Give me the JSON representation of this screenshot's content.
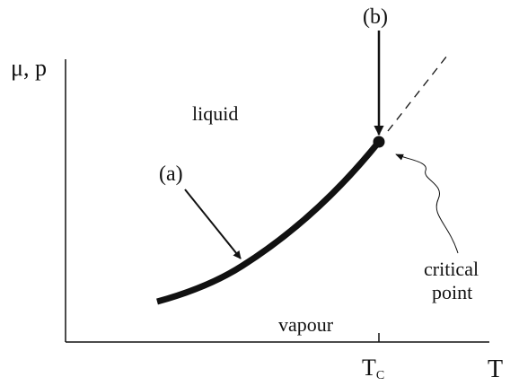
{
  "axes": {
    "y_label": "μ, p",
    "x_label": "T",
    "tick": {
      "main": "T",
      "sub": "C"
    }
  },
  "regions": {
    "upper": "liquid",
    "lower": "vapour"
  },
  "annotations": {
    "a": "(a)",
    "b": "(b)",
    "critical": [
      "critical",
      "point"
    ]
  }
}
